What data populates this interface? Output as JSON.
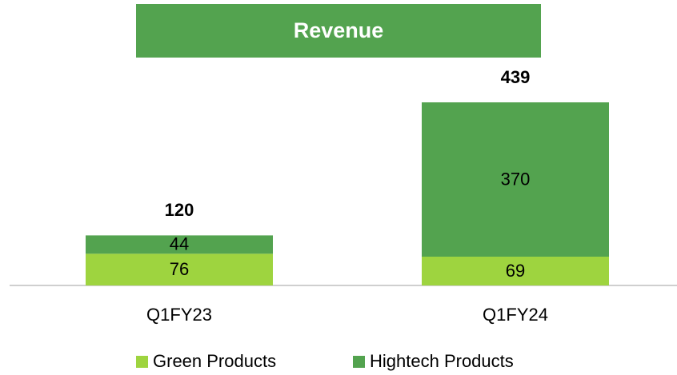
{
  "chart_data": {
    "type": "stacked_bar",
    "title": "Revenue",
    "categories": [
      "Q1FY23",
      "Q1FY24"
    ],
    "series": [
      {
        "name": "Green Products",
        "color": "#9ed43f",
        "values": [
          76,
          69
        ]
      },
      {
        "name": "Hightech Products",
        "color": "#53a34f",
        "values": [
          44,
          370
        ]
      }
    ],
    "totals": [
      120,
      439
    ],
    "title_color": "#53a34f"
  }
}
